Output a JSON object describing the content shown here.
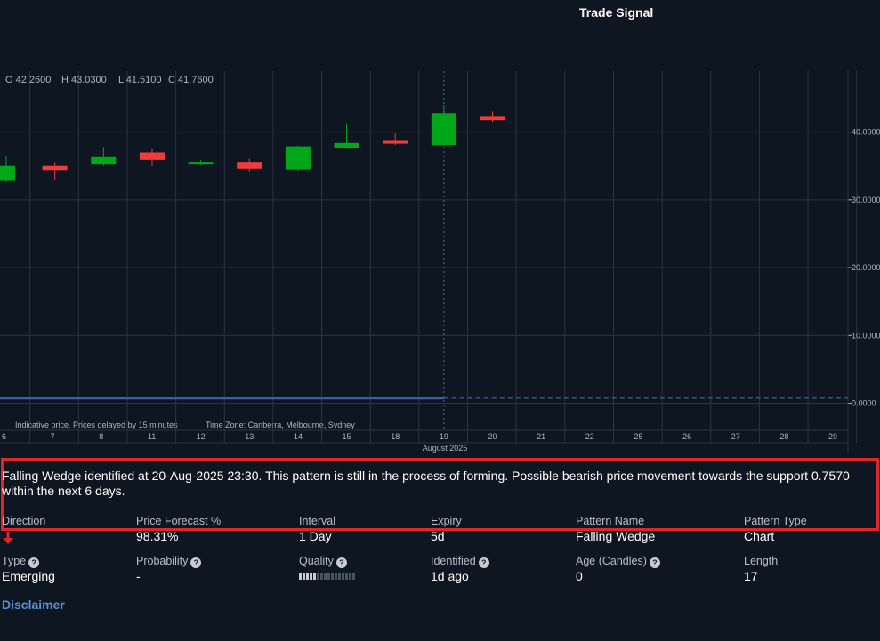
{
  "header": {
    "title": "Trade Signal"
  },
  "ohlc": {
    "o": "O 42.2600",
    "h": "H 43.0300",
    "l": "L 41.5100",
    "c": "C 41.7600"
  },
  "chart_data": {
    "type": "candlestick",
    "y_ticks": [
      "0.0000",
      "10.0000",
      "20.0000",
      "30.0000",
      "40.0000"
    ],
    "y_tick_values": [
      0,
      10,
      20,
      30,
      40
    ],
    "x_ticks": [
      "6",
      "7",
      "8",
      "11",
      "12",
      "13",
      "14",
      "15",
      "18",
      "19",
      "20",
      "21",
      "22",
      "25",
      "26",
      "27",
      "28",
      "29"
    ],
    "x_group_label": "August 2025",
    "candles": [
      {
        "date": "6",
        "open": 32.8,
        "high": 36.4,
        "low": 32.6,
        "close": 35.0
      },
      {
        "date": "7",
        "open": 35.0,
        "high": 35.6,
        "low": 33.0,
        "close": 34.4
      },
      {
        "date": "8",
        "open": 35.2,
        "high": 37.8,
        "low": 35.0,
        "close": 36.3
      },
      {
        "date": "11",
        "open": 37.0,
        "high": 37.5,
        "low": 35.0,
        "close": 35.9
      },
      {
        "date": "12",
        "open": 35.3,
        "high": 35.9,
        "low": 35.1,
        "close": 35.6
      },
      {
        "date": "13",
        "open": 35.6,
        "high": 36.1,
        "low": 34.2,
        "close": 34.6
      },
      {
        "date": "14",
        "open": 34.5,
        "high": 38.0,
        "low": 34.3,
        "close": 37.9
      },
      {
        "date": "15",
        "open": 37.6,
        "high": 41.2,
        "low": 37.5,
        "close": 38.4
      },
      {
        "date": "18",
        "open": 38.7,
        "high": 39.8,
        "low": 38.1,
        "close": 38.3
      },
      {
        "date": "19",
        "open": 38.1,
        "high": 44.0,
        "low": 38.0,
        "close": 42.8
      },
      {
        "date": "20",
        "open": 42.26,
        "high": 43.03,
        "low": 41.51,
        "close": 41.76
      }
    ],
    "support_level": 0.757,
    "ylim": [
      -4,
      49
    ],
    "colors": {
      "up": "#00a819",
      "down": "#f23b3b",
      "support": "#3b5bab",
      "grid": "#2c3441",
      "text": "#aeb5c0"
    }
  },
  "chart_notes": {
    "delay": "Indicative price. Prices delayed by 15 minutes",
    "timezone": "Time Zone: Canberra, Melbourne, Sydney"
  },
  "description": "Falling Wedge identified at 20-Aug-2025 23:30. This pattern is still in the process of forming. Possible bearish price movement towards the support 0.7570 within the next 6 days.",
  "fields_row1": [
    {
      "label": "Direction",
      "value": ""
    },
    {
      "label": "Price Forecast %",
      "value": "98.31%"
    },
    {
      "label": "Interval",
      "value": "1 Day"
    },
    {
      "label": "Expiry",
      "value": "5d"
    },
    {
      "label": "Pattern Name",
      "value": "Falling Wedge"
    },
    {
      "label": "Pattern Type",
      "value": "Chart"
    }
  ],
  "fields_row2": [
    {
      "label": "Type",
      "value": "Emerging"
    },
    {
      "label": "Probability",
      "value": "-"
    },
    {
      "label": "Quality",
      "value": ""
    },
    {
      "label": "Identified",
      "value": "1d ago"
    },
    {
      "label": "Age (Candles)",
      "value": "0"
    },
    {
      "label": "Length",
      "value": "17"
    }
  ],
  "quality_level": 0.3,
  "help_glyph": "?",
  "disclaimer": "Disclaimer"
}
